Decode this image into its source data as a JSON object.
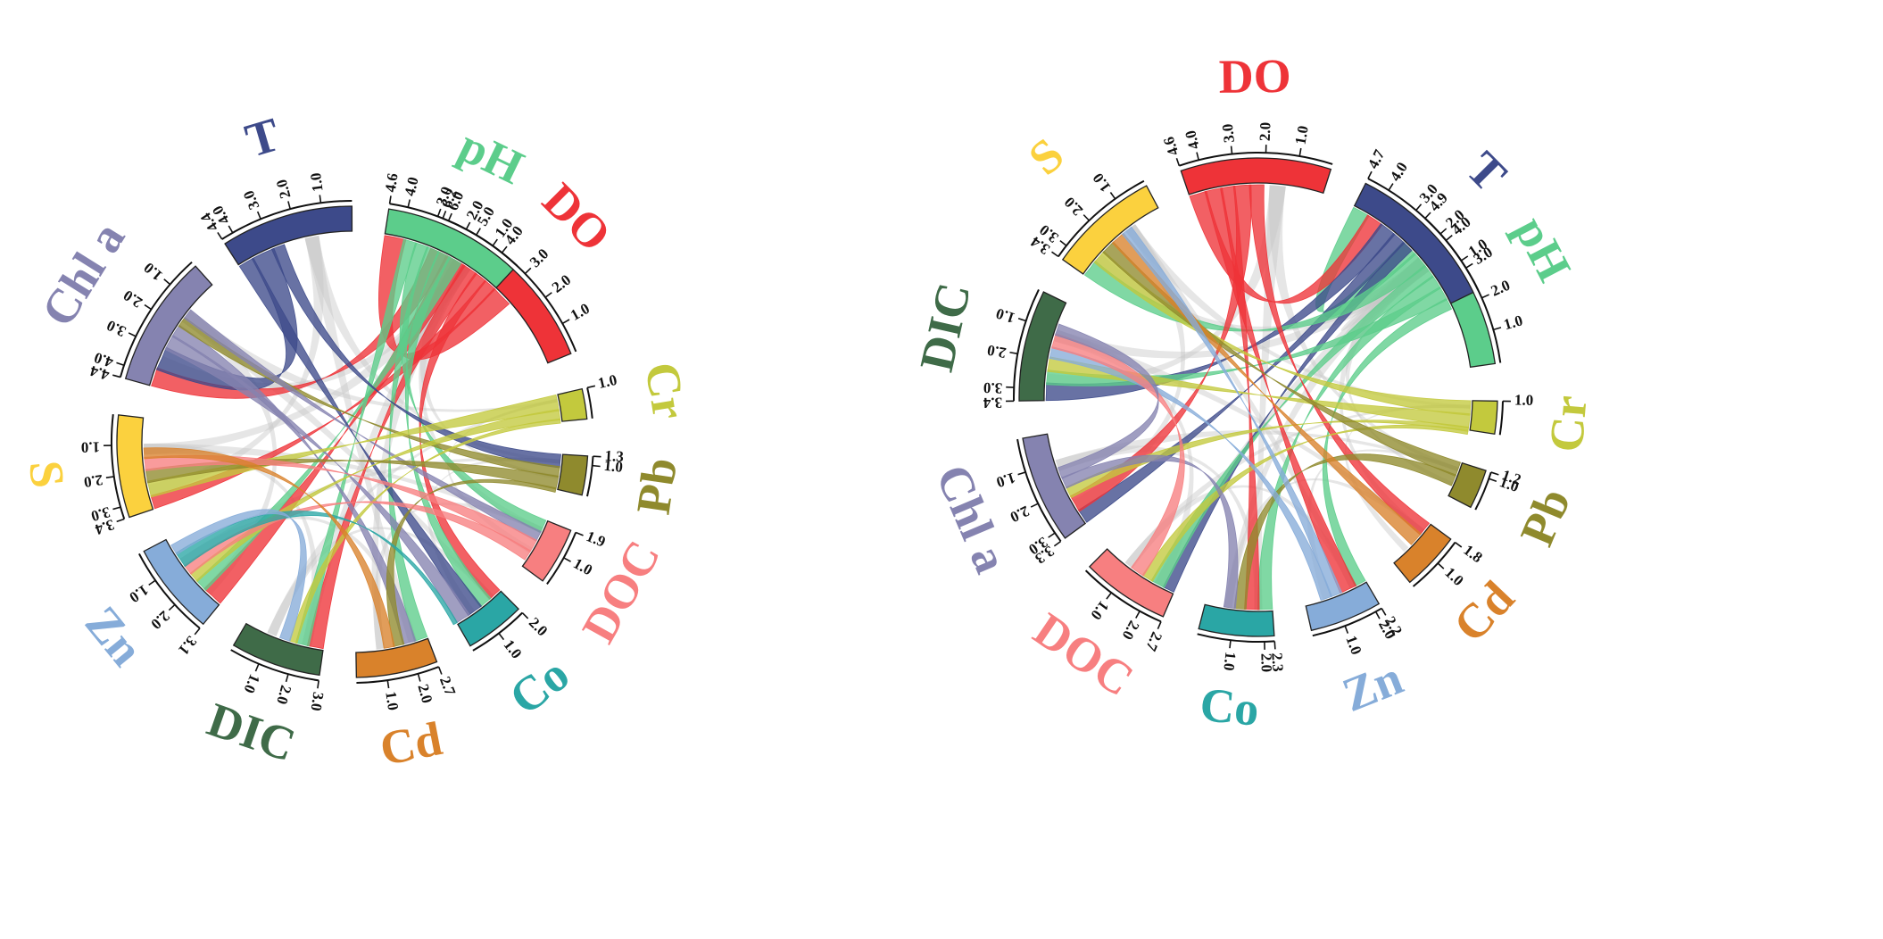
{
  "diagrams": [
    {
      "id": "left",
      "segments": [
        {
          "key": "DO",
          "label": "DO",
          "color": "#ee3338",
          "max": 6.2,
          "ticks": [
            "1.0",
            "2.0",
            "3.0",
            "4.0",
            "5.0",
            "6.0",
            "6.2"
          ]
        },
        {
          "key": "Cr",
          "label": "Cr",
          "color": "#c3c93d",
          "max": 1.0,
          "ticks": [
            "1.0"
          ]
        },
        {
          "key": "Pb",
          "label": "Pb",
          "color": "#8f8a2d",
          "max": 1.3,
          "ticks": [
            "1.0",
            "1.3"
          ]
        },
        {
          "key": "DOC",
          "label": "DOC",
          "color": "#f77f80",
          "max": 1.9,
          "ticks": [
            "1.0",
            "1.9"
          ]
        },
        {
          "key": "Co",
          "label": "Co",
          "color": "#2aa6a5",
          "max": 2.0,
          "ticks": [
            "1.0",
            "2.0"
          ]
        },
        {
          "key": "Cd",
          "label": "Cd",
          "color": "#d9822b",
          "max": 2.7,
          "ticks": [
            "1.0",
            "2.0",
            "2.7"
          ]
        },
        {
          "key": "DIC",
          "label": "DIC",
          "color": "#3f6b48",
          "max": 3.0,
          "ticks": [
            "1.0",
            "2.0",
            "3.0"
          ]
        },
        {
          "key": "Zn",
          "label": "Zn",
          "color": "#86acd9",
          "max": 3.1,
          "ticks": [
            "1.0",
            "2.0",
            "3.1"
          ]
        },
        {
          "key": "S",
          "label": "S",
          "color": "#fbd13e",
          "max": 3.4,
          "ticks": [
            "1.0",
            "2.0",
            "3.0",
            "3.4"
          ]
        },
        {
          "key": "Chla",
          "label": "Chl a",
          "color": "#8583b0",
          "max": 4.4,
          "ticks": [
            "1.0",
            "2.0",
            "3.0",
            "4.0",
            "4.4"
          ]
        },
        {
          "key": "T",
          "label": "T",
          "color": "#3d4a8a",
          "max": 4.4,
          "ticks": [
            "1.0",
            "2.0",
            "3.0",
            "4.0",
            "4.4"
          ]
        },
        {
          "key": "pH",
          "label": "pH",
          "color": "#5ccd8b",
          "max": 4.6,
          "ticks": [
            "1.0",
            "2.0",
            "3.0",
            "4.0",
            "4.6"
          ]
        }
      ]
    },
    {
      "id": "right",
      "segments": [
        {
          "key": "pH",
          "label": "pH",
          "color": "#5ccd8b",
          "max": 4.9,
          "ticks": [
            "1.0",
            "2.0",
            "3.0",
            "4.0",
            "4.9"
          ]
        },
        {
          "key": "Cr",
          "label": "Cr",
          "color": "#c3c93d",
          "max": 1.0,
          "ticks": [
            "1.0"
          ]
        },
        {
          "key": "Pb",
          "label": "Pb",
          "color": "#8f8a2d",
          "max": 1.2,
          "ticks": [
            "1.0",
            "1.2"
          ]
        },
        {
          "key": "Cd",
          "label": "Cd",
          "color": "#d9822b",
          "max": 1.8,
          "ticks": [
            "1.0",
            "1.8"
          ]
        },
        {
          "key": "Zn",
          "label": "Zn",
          "color": "#86acd9",
          "max": 2.2,
          "ticks": [
            "1.0",
            "2.0",
            "2.2"
          ]
        },
        {
          "key": "Co",
          "label": "Co",
          "color": "#2aa6a5",
          "max": 2.3,
          "ticks": [
            "1.0",
            "2.0",
            "2.3"
          ]
        },
        {
          "key": "DOC",
          "label": "DOC",
          "color": "#f77f80",
          "max": 2.7,
          "ticks": [
            "1.0",
            "2.0",
            "2.7"
          ]
        },
        {
          "key": "Chla",
          "label": "Chl a",
          "color": "#8583b0",
          "max": 3.3,
          "ticks": [
            "1.0",
            "2.0",
            "3.0",
            "3.3"
          ]
        },
        {
          "key": "DIC",
          "label": "DIC",
          "color": "#3f6b48",
          "max": 3.4,
          "ticks": [
            "1.0",
            "2.0",
            "3.0",
            "3.4"
          ]
        },
        {
          "key": "S",
          "label": "S",
          "color": "#fbd13e",
          "max": 3.4,
          "ticks": [
            "1.0",
            "2.0",
            "3.0",
            "3.4"
          ]
        },
        {
          "key": "DO",
          "label": "DO",
          "color": "#ee3338",
          "max": 4.6,
          "ticks": [
            "1.0",
            "2.0",
            "3.0",
            "4.0",
            "4.6"
          ]
        },
        {
          "key": "T",
          "label": "T",
          "color": "#3d4a8a",
          "max": 4.7,
          "ticks": [
            "1.0",
            "2.0",
            "3.0",
            "4.0",
            "4.7"
          ]
        }
      ]
    }
  ]
}
